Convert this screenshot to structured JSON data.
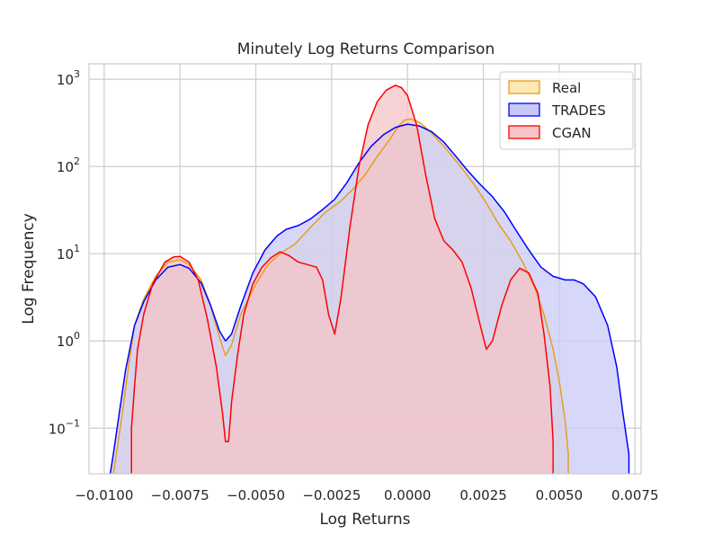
{
  "chart_data": {
    "type": "area",
    "title": "Minutely Log Returns Comparison",
    "xlabel": "Log Returns",
    "ylabel": "Log Frequency",
    "y_scale": "log",
    "xlim": [
      -0.0105,
      0.0077
    ],
    "ylim": [
      0.03,
      1500
    ],
    "grid": true,
    "legend_position": "top-right",
    "x_ticks": [
      -0.01,
      -0.0075,
      -0.005,
      -0.0025,
      0.0,
      0.0025,
      0.005,
      0.0075
    ],
    "x_tick_labels": [
      "−0.0100",
      "−0.0075",
      "−0.0050",
      "−0.0025",
      "0.0000",
      "0.0025",
      "0.0050",
      "0.0075"
    ],
    "y_ticks": [
      {
        "value": 0.1,
        "base": "10",
        "exp": "−1"
      },
      {
        "value": 1,
        "base": "10",
        "exp": "0"
      },
      {
        "value": 10,
        "base": "10",
        "exp": "1"
      },
      {
        "value": 100,
        "base": "10",
        "exp": "2"
      },
      {
        "value": 1000,
        "base": "10",
        "exp": "3"
      }
    ],
    "series": [
      {
        "name": "Real",
        "line_color": "#e69f1e",
        "fill_color": "#fde7b3",
        "points": [
          [
            -0.0097,
            0.03
          ],
          [
            -0.0096,
            0.05
          ],
          [
            -0.0094,
            0.15
          ],
          [
            -0.0092,
            0.5
          ],
          [
            -0.009,
            1.5
          ],
          [
            -0.0087,
            3
          ],
          [
            -0.0083,
            5.5
          ],
          [
            -0.0079,
            8
          ],
          [
            -0.0075,
            8.5
          ],
          [
            -0.0072,
            7.5
          ],
          [
            -0.0068,
            5
          ],
          [
            -0.0065,
            2.6
          ],
          [
            -0.0062,
            1.1
          ],
          [
            -0.006,
            0.68
          ],
          [
            -0.0058,
            0.9
          ],
          [
            -0.0055,
            2
          ],
          [
            -0.005,
            4.5
          ],
          [
            -0.0046,
            7.5
          ],
          [
            -0.0042,
            10
          ],
          [
            -0.0037,
            13
          ],
          [
            -0.0032,
            20
          ],
          [
            -0.0027,
            30
          ],
          [
            -0.0022,
            40
          ],
          [
            -0.0018,
            55
          ],
          [
            -0.0014,
            80
          ],
          [
            -0.001,
            130
          ],
          [
            -0.0006,
            200
          ],
          [
            -0.0003,
            290
          ],
          [
            -0.0001,
            340
          ],
          [
            0.0001,
            350
          ],
          [
            0.0004,
            320
          ],
          [
            0.0008,
            240
          ],
          [
            0.0012,
            170
          ],
          [
            0.0017,
            105
          ],
          [
            0.0022,
            62
          ],
          [
            0.0026,
            38
          ],
          [
            0.003,
            22
          ],
          [
            0.0034,
            14
          ],
          [
            0.0038,
            8
          ],
          [
            0.0042,
            4
          ],
          [
            0.0045,
            2
          ],
          [
            0.0048,
            0.8
          ],
          [
            0.005,
            0.35
          ],
          [
            0.0052,
            0.12
          ],
          [
            0.0053,
            0.05
          ],
          [
            0.0053,
            0.03
          ]
        ]
      },
      {
        "name": "TRADES",
        "line_color": "#0000ff",
        "fill_color": "#c9c9f8",
        "points": [
          [
            -0.0098,
            0.03
          ],
          [
            -0.0097,
            0.05
          ],
          [
            -0.0095,
            0.15
          ],
          [
            -0.0093,
            0.45
          ],
          [
            -0.009,
            1.5
          ],
          [
            -0.0087,
            2.8
          ],
          [
            -0.0083,
            5
          ],
          [
            -0.0079,
            7
          ],
          [
            -0.0075,
            7.5
          ],
          [
            -0.0072,
            6.8
          ],
          [
            -0.0068,
            4.6
          ],
          [
            -0.0065,
            2.6
          ],
          [
            -0.0062,
            1.3
          ],
          [
            -0.006,
            1.0
          ],
          [
            -0.0058,
            1.2
          ],
          [
            -0.0055,
            2.5
          ],
          [
            -0.0051,
            6
          ],
          [
            -0.0047,
            11
          ],
          [
            -0.0043,
            16
          ],
          [
            -0.004,
            19
          ],
          [
            -0.0036,
            21
          ],
          [
            -0.0032,
            25
          ],
          [
            -0.0028,
            32
          ],
          [
            -0.0024,
            42
          ],
          [
            -0.002,
            65
          ],
          [
            -0.0016,
            110
          ],
          [
            -0.0012,
            170
          ],
          [
            -0.0008,
            230
          ],
          [
            -0.0004,
            280
          ],
          [
            0.0,
            305
          ],
          [
            0.0004,
            290
          ],
          [
            0.0008,
            250
          ],
          [
            0.0012,
            190
          ],
          [
            0.0016,
            130
          ],
          [
            0.002,
            88
          ],
          [
            0.0024,
            62
          ],
          [
            0.0028,
            45
          ],
          [
            0.0032,
            30
          ],
          [
            0.0036,
            18
          ],
          [
            0.004,
            11
          ],
          [
            0.0044,
            7
          ],
          [
            0.0048,
            5.5
          ],
          [
            0.0052,
            5
          ],
          [
            0.0055,
            5
          ],
          [
            0.0058,
            4.5
          ],
          [
            0.0062,
            3.2
          ],
          [
            0.0066,
            1.5
          ],
          [
            0.0069,
            0.5
          ],
          [
            0.0071,
            0.15
          ],
          [
            0.0073,
            0.05
          ],
          [
            0.0073,
            0.03
          ]
        ]
      },
      {
        "name": "CGAN",
        "line_color": "#ff0000",
        "fill_color": "#f6c4c7",
        "points": [
          [
            -0.0091,
            0.03
          ],
          [
            -0.0091,
            0.1
          ],
          [
            -0.009,
            0.3
          ],
          [
            -0.0089,
            0.8
          ],
          [
            -0.0087,
            2
          ],
          [
            -0.0084,
            4.5
          ],
          [
            -0.008,
            8
          ],
          [
            -0.0077,
            9.2
          ],
          [
            -0.0075,
            9.3
          ],
          [
            -0.0072,
            8
          ],
          [
            -0.0069,
            5
          ],
          [
            -0.0066,
            1.8
          ],
          [
            -0.0063,
            0.5
          ],
          [
            -0.0061,
            0.15
          ],
          [
            -0.006,
            0.07
          ],
          [
            -0.0059,
            0.07
          ],
          [
            -0.0058,
            0.2
          ],
          [
            -0.0056,
            0.7
          ],
          [
            -0.0054,
            2
          ],
          [
            -0.0051,
            4.5
          ],
          [
            -0.0048,
            7
          ],
          [
            -0.0045,
            9
          ],
          [
            -0.0042,
            10.5
          ],
          [
            -0.0039,
            9.5
          ],
          [
            -0.0036,
            8
          ],
          [
            -0.0033,
            7.5
          ],
          [
            -0.003,
            7
          ],
          [
            -0.0028,
            5
          ],
          [
            -0.0026,
            2
          ],
          [
            -0.0024,
            1.2
          ],
          [
            -0.0022,
            3
          ],
          [
            -0.0019,
            20
          ],
          [
            -0.0016,
            100
          ],
          [
            -0.0013,
            300
          ],
          [
            -0.001,
            550
          ],
          [
            -0.0007,
            750
          ],
          [
            -0.0004,
            850
          ],
          [
            -0.0002,
            800
          ],
          [
            0.0,
            650
          ],
          [
            0.0003,
            300
          ],
          [
            0.0006,
            80
          ],
          [
            0.0009,
            25
          ],
          [
            0.0012,
            14
          ],
          [
            0.0015,
            11
          ],
          [
            0.0018,
            8
          ],
          [
            0.0021,
            4
          ],
          [
            0.0024,
            1.5
          ],
          [
            0.0026,
            0.8
          ],
          [
            0.0028,
            1.0
          ],
          [
            0.0031,
            2.5
          ],
          [
            0.0034,
            5
          ],
          [
            0.0037,
            6.8
          ],
          [
            0.004,
            6
          ],
          [
            0.0043,
            3.5
          ],
          [
            0.0045,
            1.2
          ],
          [
            0.0047,
            0.3
          ],
          [
            0.0048,
            0.07
          ],
          [
            0.0048,
            0.03
          ]
        ]
      }
    ]
  }
}
